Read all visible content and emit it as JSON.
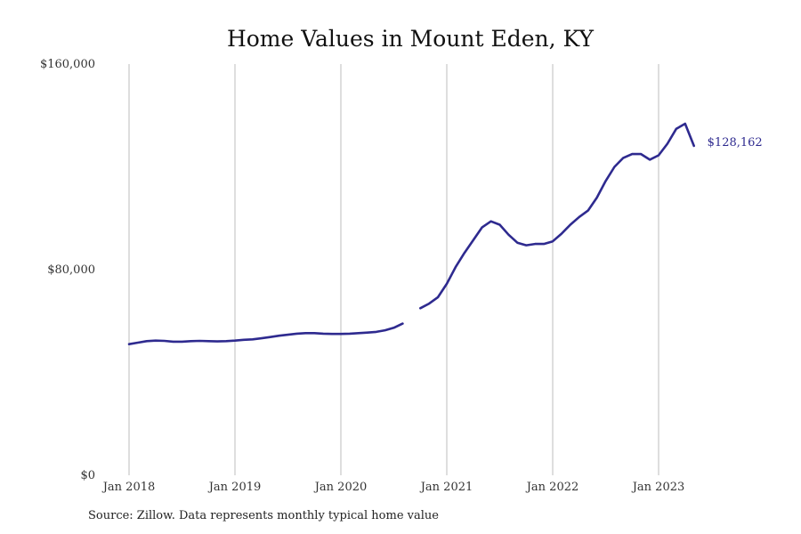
{
  "chart_data": {
    "type": "line",
    "title": "Home Values in Mount Eden, KY",
    "source": "Source: Zillow. Data represents monthly typical home value",
    "x_ticks": [
      "Jan 2018",
      "Jan 2019",
      "Jan 2020",
      "Jan 2021",
      "Jan 2022",
      "Jan 2023"
    ],
    "y_ticks": [
      "$0",
      "$80,000",
      "$160,000"
    ],
    "ylim": [
      0,
      160000
    ],
    "xlim": [
      "2018-01",
      "2023-12"
    ],
    "grid": "vertical",
    "line_color": "#2e2a8f",
    "end_label": "$128,162",
    "series": [
      {
        "points": [
          [
            "2018-01",
            51000
          ],
          [
            "2018-02",
            51600
          ],
          [
            "2018-03",
            52200
          ],
          [
            "2018-04",
            52400
          ],
          [
            "2018-05",
            52300
          ],
          [
            "2018-06",
            52000
          ],
          [
            "2018-07",
            52000
          ],
          [
            "2018-08",
            52200
          ],
          [
            "2018-09",
            52300
          ],
          [
            "2018-10",
            52200
          ],
          [
            "2018-11",
            52100
          ],
          [
            "2018-12",
            52200
          ],
          [
            "2019-01",
            52400
          ],
          [
            "2019-02",
            52700
          ],
          [
            "2019-03",
            52900
          ],
          [
            "2019-04",
            53300
          ],
          [
            "2019-05",
            53800
          ],
          [
            "2019-06",
            54300
          ],
          [
            "2019-07",
            54700
          ],
          [
            "2019-08",
            55100
          ],
          [
            "2019-09",
            55300
          ],
          [
            "2019-10",
            55300
          ],
          [
            "2019-11",
            55100
          ],
          [
            "2019-12",
            55000
          ],
          [
            "2020-01",
            55000
          ],
          [
            "2020-02",
            55100
          ],
          [
            "2020-03",
            55300
          ],
          [
            "2020-04",
            55500
          ],
          [
            "2020-05",
            55800
          ],
          [
            "2020-06",
            56400
          ],
          [
            "2020-07",
            57400
          ],
          [
            "2020-08",
            59000
          ],
          [
            "2020-09",
            null
          ],
          [
            "2020-10",
            65000
          ],
          [
            "2020-11",
            66800
          ],
          [
            "2020-12",
            69300
          ],
          [
            "2021-01",
            74500
          ],
          [
            "2021-02",
            81000
          ],
          [
            "2021-03",
            86500
          ],
          [
            "2021-04",
            91500
          ],
          [
            "2021-05",
            96500
          ],
          [
            "2021-06",
            98800
          ],
          [
            "2021-07",
            97500
          ],
          [
            "2021-08",
            93600
          ],
          [
            "2021-09",
            90500
          ],
          [
            "2021-10",
            89500
          ],
          [
            "2021-11",
            90000
          ],
          [
            "2021-12",
            90000
          ],
          [
            "2022-01",
            91000
          ],
          [
            "2022-02",
            94000
          ],
          [
            "2022-03",
            97500
          ],
          [
            "2022-04",
            100500
          ],
          [
            "2022-05",
            103000
          ],
          [
            "2022-06",
            108000
          ],
          [
            "2022-07",
            114500
          ],
          [
            "2022-08",
            120000
          ],
          [
            "2022-09",
            123500
          ],
          [
            "2022-10",
            125000
          ],
          [
            "2022-11",
            125000
          ],
          [
            "2022-12",
            122800
          ],
          [
            "2023-01",
            124500
          ],
          [
            "2023-02",
            129000
          ],
          [
            "2023-03",
            134800
          ],
          [
            "2023-04",
            136800
          ],
          [
            "2023-05",
            128162
          ]
        ]
      }
    ]
  }
}
